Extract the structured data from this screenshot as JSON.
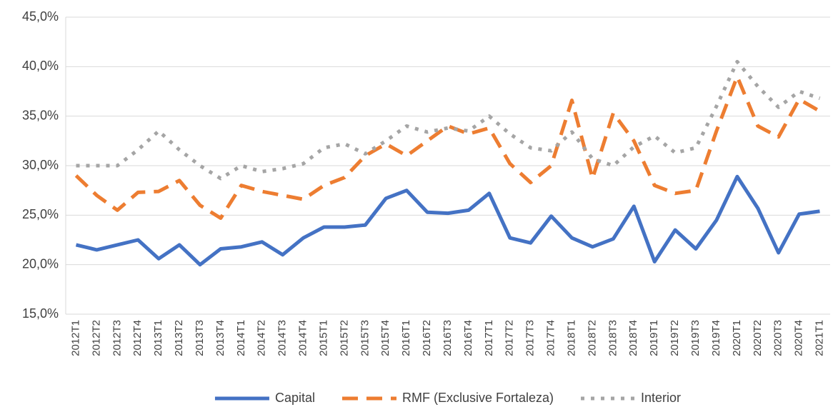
{
  "chart_data": {
    "type": "line",
    "categories": [
      "2012T1",
      "2012T2",
      "2012T3",
      "2012T4",
      "2013T1",
      "2013T2",
      "2013T3",
      "2013T4",
      "2014T1",
      "2014T2",
      "2014T3",
      "2014T4",
      "2015T1",
      "2015T2",
      "2015T3",
      "2015T4",
      "2016T1",
      "2016T2",
      "2016T3",
      "2016T4",
      "2017T1",
      "2017T2",
      "2017T3",
      "2017T4",
      "2018T1",
      "2018T2",
      "2018T3",
      "2018T4",
      "2019T1",
      "2019T2",
      "2019T3",
      "2019T4",
      "2020T1",
      "2020T2",
      "2020T3",
      "2020T4",
      "2021T1"
    ],
    "series": [
      {
        "name": "Capital",
        "color": "#4472c4",
        "dash": "solid",
        "values": [
          22.0,
          21.5,
          22.0,
          22.5,
          20.6,
          22.0,
          20.0,
          21.6,
          21.8,
          22.3,
          21.0,
          22.7,
          23.8,
          23.8,
          24.0,
          26.7,
          27.5,
          25.3,
          25.2,
          25.5,
          27.2,
          22.7,
          22.2,
          24.9,
          22.7,
          21.8,
          22.6,
          25.9,
          20.3,
          23.5,
          21.6,
          24.5,
          28.9,
          25.7,
          21.2,
          25.1,
          25.4
        ]
      },
      {
        "name": "RMF (Exclusive Fortaleza)",
        "color": "#ed7d31",
        "dash": "dash",
        "values": [
          29.0,
          27.0,
          25.5,
          27.3,
          27.4,
          28.5,
          26.0,
          24.7,
          28.0,
          27.4,
          27.0,
          26.6,
          28.0,
          28.8,
          31.0,
          32.2,
          31.0,
          32.5,
          34.0,
          33.2,
          33.8,
          30.2,
          28.3,
          30.0,
          36.6,
          28.7,
          35.3,
          32.5,
          28.0,
          27.2,
          27.5,
          33.5,
          39.0,
          34.0,
          32.9,
          36.7,
          35.5
        ]
      },
      {
        "name": "Interior",
        "color": "#a5a5a5",
        "dash": "dot",
        "values": [
          30.0,
          30.0,
          30.0,
          31.6,
          33.5,
          31.6,
          30.0,
          28.7,
          30.0,
          29.4,
          29.7,
          30.2,
          31.8,
          32.2,
          31.2,
          32.5,
          34.0,
          33.4,
          33.8,
          33.5,
          35.0,
          33.2,
          31.8,
          31.5,
          33.4,
          30.7,
          30.0,
          31.9,
          33.0,
          31.3,
          31.8,
          36.0,
          40.5,
          38.0,
          35.9,
          37.5,
          36.8
        ]
      }
    ],
    "ylim": [
      15,
      45
    ],
    "yticks": [
      {
        "value": 15,
        "label": "15,0%"
      },
      {
        "value": 20,
        "label": "20,0%"
      },
      {
        "value": 25,
        "label": "25,0%"
      },
      {
        "value": 30,
        "label": "30,0%"
      },
      {
        "value": 35,
        "label": "35,0%"
      },
      {
        "value": 40,
        "label": "40,0%"
      },
      {
        "value": 45,
        "label": "45,0%"
      }
    ],
    "grid": true,
    "legend": "bottom"
  }
}
